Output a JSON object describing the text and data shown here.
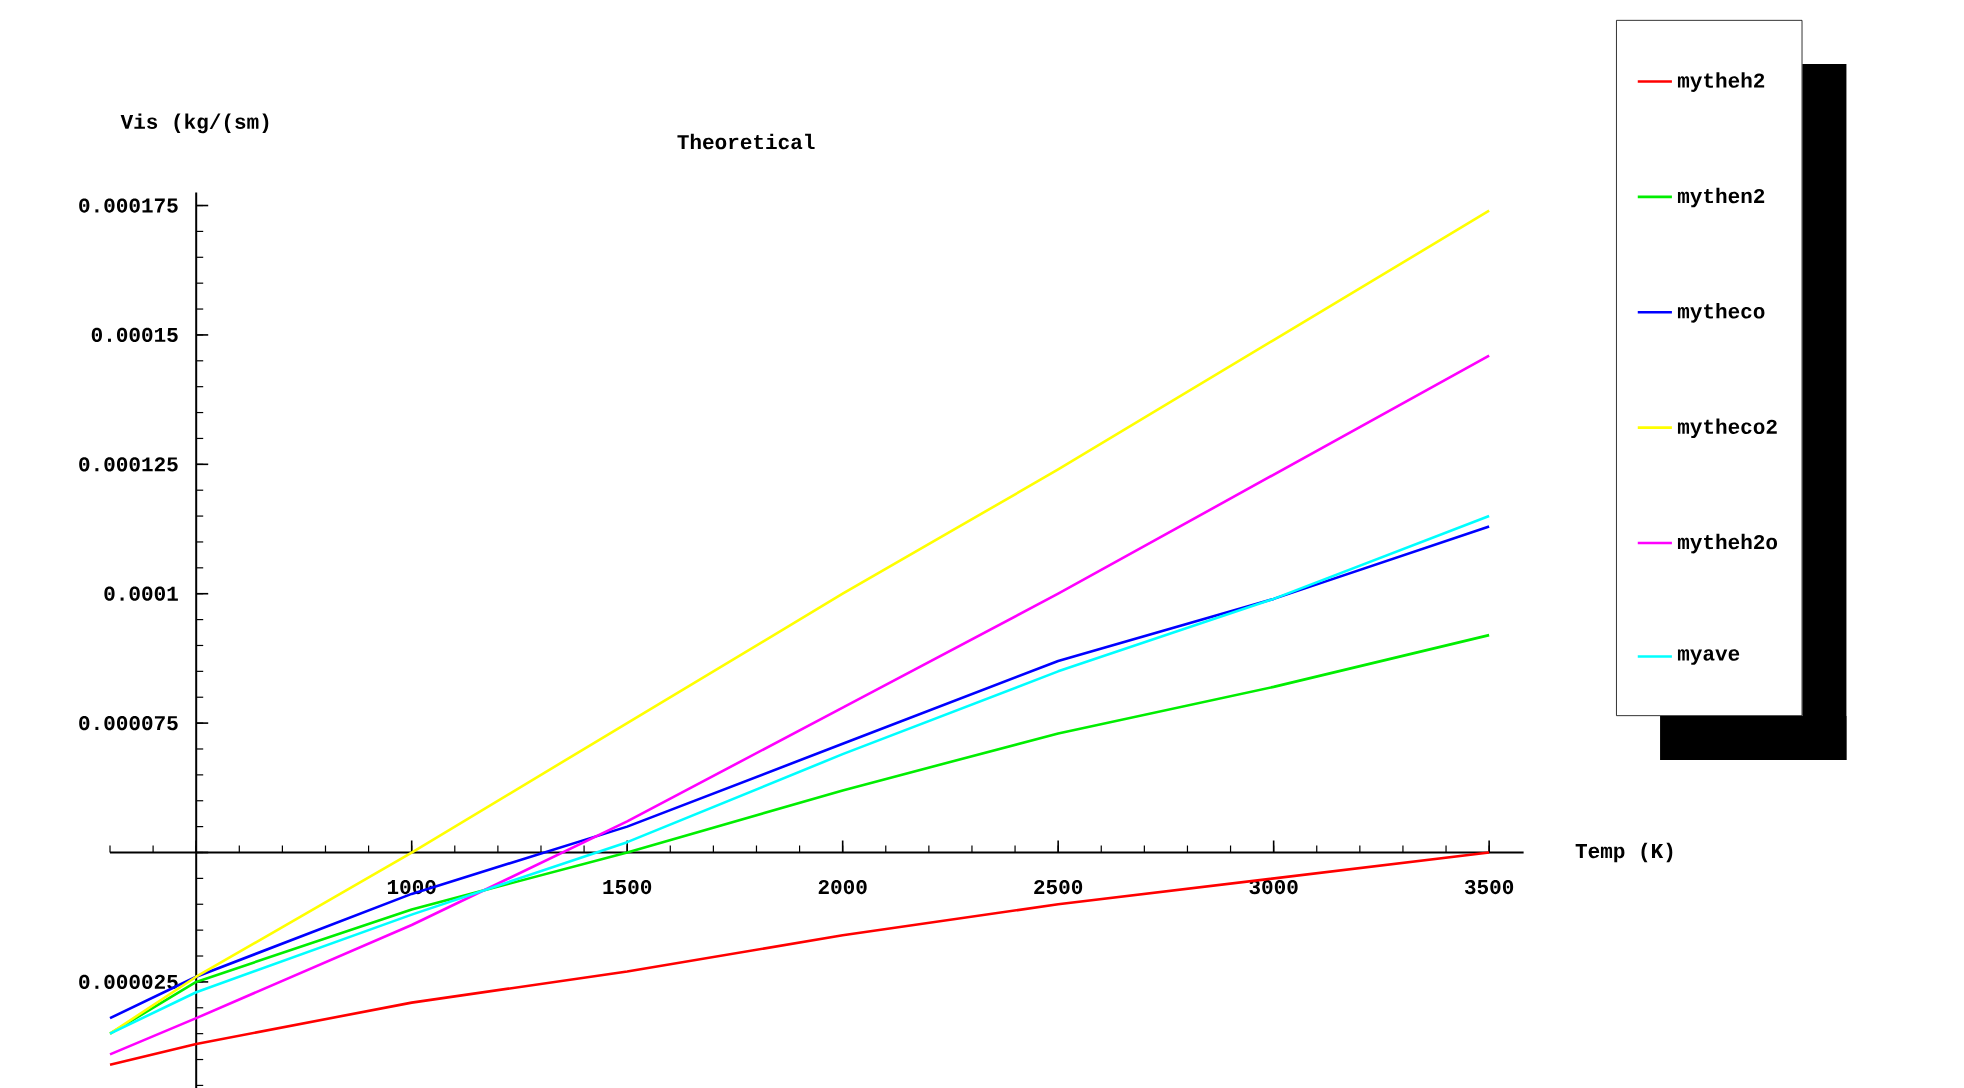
{
  "chart_data": {
    "type": "line",
    "title": "Theoretical",
    "xlabel": "Temp (K)",
    "ylabel": "Vis (kg/(sm)",
    "x": [
      300,
      500,
      1000,
      1500,
      2000,
      2500,
      3000,
      3500
    ],
    "series": [
      {
        "name": "mytheh2",
        "color": "#ff0000",
        "values": [
          9e-06,
          1.3e-05,
          2.1e-05,
          2.7e-05,
          3.4e-05,
          4e-05,
          4.5e-05,
          5e-05
        ]
      },
      {
        "name": "mythen2",
        "color": "#00ee00",
        "values": [
          1.5e-05,
          2.5e-05,
          3.9e-05,
          5e-05,
          6.2e-05,
          7.3e-05,
          8.2e-05,
          9.2e-05
        ]
      },
      {
        "name": "mytheco",
        "color": "#0000ff",
        "values": [
          1.8e-05,
          2.6e-05,
          4.2e-05,
          5.5e-05,
          7.1e-05,
          8.7e-05,
          9.9e-05,
          0.000113
        ]
      },
      {
        "name": "mytheco2",
        "color": "#ffff00",
        "values": [
          1.5e-05,
          2.6e-05,
          5e-05,
          7.5e-05,
          0.0001,
          0.000124,
          0.000149,
          0.000174
        ]
      },
      {
        "name": "mytheh2o",
        "color": "#ff00ff",
        "values": [
          1.1e-05,
          1.8e-05,
          3.6e-05,
          5.6e-05,
          7.8e-05,
          0.0001,
          0.000123,
          0.000146
        ]
      },
      {
        "name": "myave",
        "color": "#00ffff",
        "values": [
          1.5e-05,
          2.3e-05,
          3.8e-05,
          5.2e-05,
          6.9e-05,
          8.5e-05,
          9.9e-05,
          0.000115
        ]
      }
    ],
    "xlim": [
      300,
      3580
    ],
    "ylim": [
      4.5e-06,
      0.0001775
    ],
    "xticks": [
      {
        "value": 500,
        "label": null
      },
      1000,
      1500,
      2000,
      2500,
      3000,
      3500
    ],
    "yticks": [
      {
        "value": 2.5e-05,
        "label": "0.000025"
      },
      {
        "value": 5e-05,
        "label": null
      },
      {
        "value": 7.5e-05,
        "label": "0.000075"
      },
      {
        "value": 0.0001,
        "label": "0.0001"
      },
      {
        "value": 0.000125,
        "label": "0.000125"
      },
      {
        "value": 0.00015,
        "label": "0.00015"
      },
      {
        "value": 0.000175,
        "label": "0.000175"
      }
    ],
    "legend": "right",
    "marker": "none",
    "line_style": "solid"
  }
}
